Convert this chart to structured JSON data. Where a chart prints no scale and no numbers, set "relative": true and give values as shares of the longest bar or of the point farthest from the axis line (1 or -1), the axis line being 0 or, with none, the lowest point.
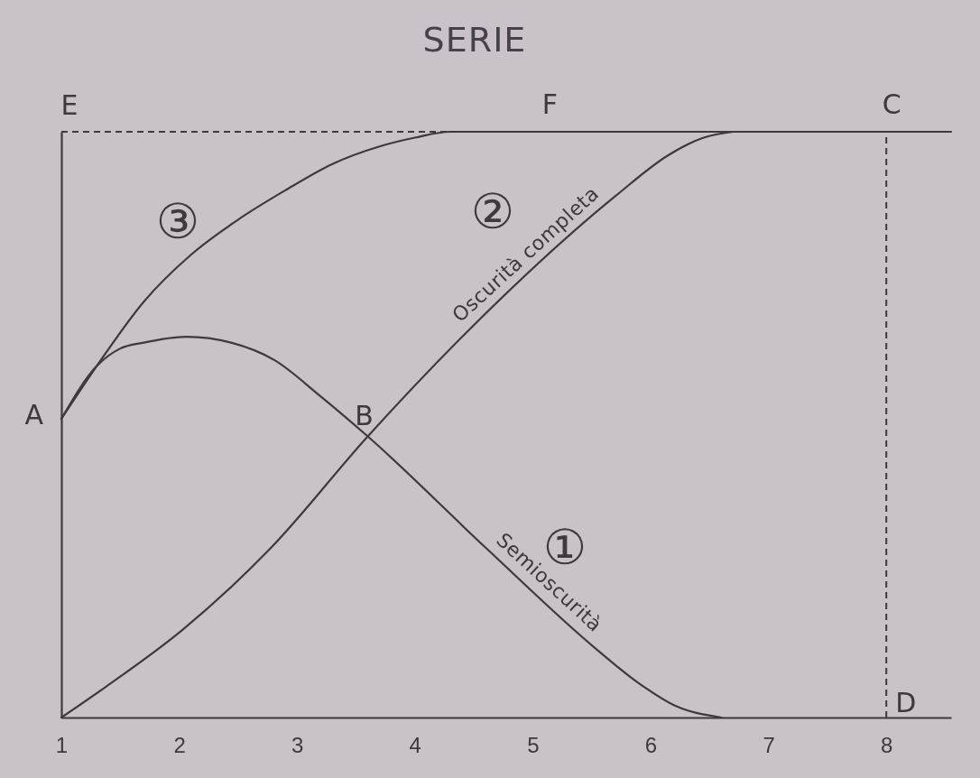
{
  "chart_data": {
    "type": "line",
    "title": "SERIE",
    "relative": true,
    "xlim": [
      1,
      8.55
    ],
    "xticks": [
      1,
      2,
      3,
      4,
      5,
      6,
      7,
      8
    ],
    "series": [
      {
        "name": "Semioscurità",
        "color": "#3d393d",
        "x": [
          1,
          1.3,
          1.5,
          1.7,
          2.06,
          2.44,
          2.81,
          3.19,
          3.6,
          4.6,
          5.52,
          5.89,
          6.21,
          6.6
        ],
        "values": [
          0.51,
          0.6,
          0.63,
          0.64,
          0.65,
          0.64,
          0.61,
          0.55,
          0.48,
          0.29,
          0.12,
          0.06,
          0.02,
          0
        ]
      },
      {
        "name": "Oscurità completa",
        "color": "#3d393d",
        "x": [
          1,
          1.36,
          2.03,
          2.78,
          3.6,
          4.5,
          5.7,
          6.15,
          6.45,
          6.7
        ],
        "values": [
          0,
          0.05,
          0.15,
          0.29,
          0.48,
          0.67,
          0.89,
          0.96,
          0.99,
          1
        ]
      },
      {
        "color": "#3d393d",
        "x": [
          1,
          1.3,
          1.7,
          2.1,
          2.5,
          2.9,
          3.3,
          3.7,
          4,
          4.3,
          8.55
        ],
        "values": [
          0.51,
          0.6,
          0.71,
          0.79,
          0.85,
          0.9,
          0.945,
          0.975,
          0.99,
          1,
          1
        ]
      },
      {
        "color": "#3d393d",
        "line_style": "dashed",
        "x": [
          1,
          4.3
        ],
        "values": [
          1,
          1
        ]
      }
    ],
    "ref_lines": [
      {
        "axis": "x",
        "value": 8,
        "color": "#3d393d",
        "line_style": "dashed"
      }
    ],
    "annotations": [
      "E",
      {
        "text": "F",
        "x": 5.1,
        "y": 1
      },
      {
        "text": "C",
        "x": 8,
        "y": 1
      },
      {
        "text": "A",
        "x": 1,
        "y": 0.51
      },
      {
        "text": "B",
        "x": 3.6,
        "y": 0.48
      },
      {
        "text": "D",
        "x": 8,
        "y": 0
      },
      "③",
      "②",
      "①"
    ]
  }
}
